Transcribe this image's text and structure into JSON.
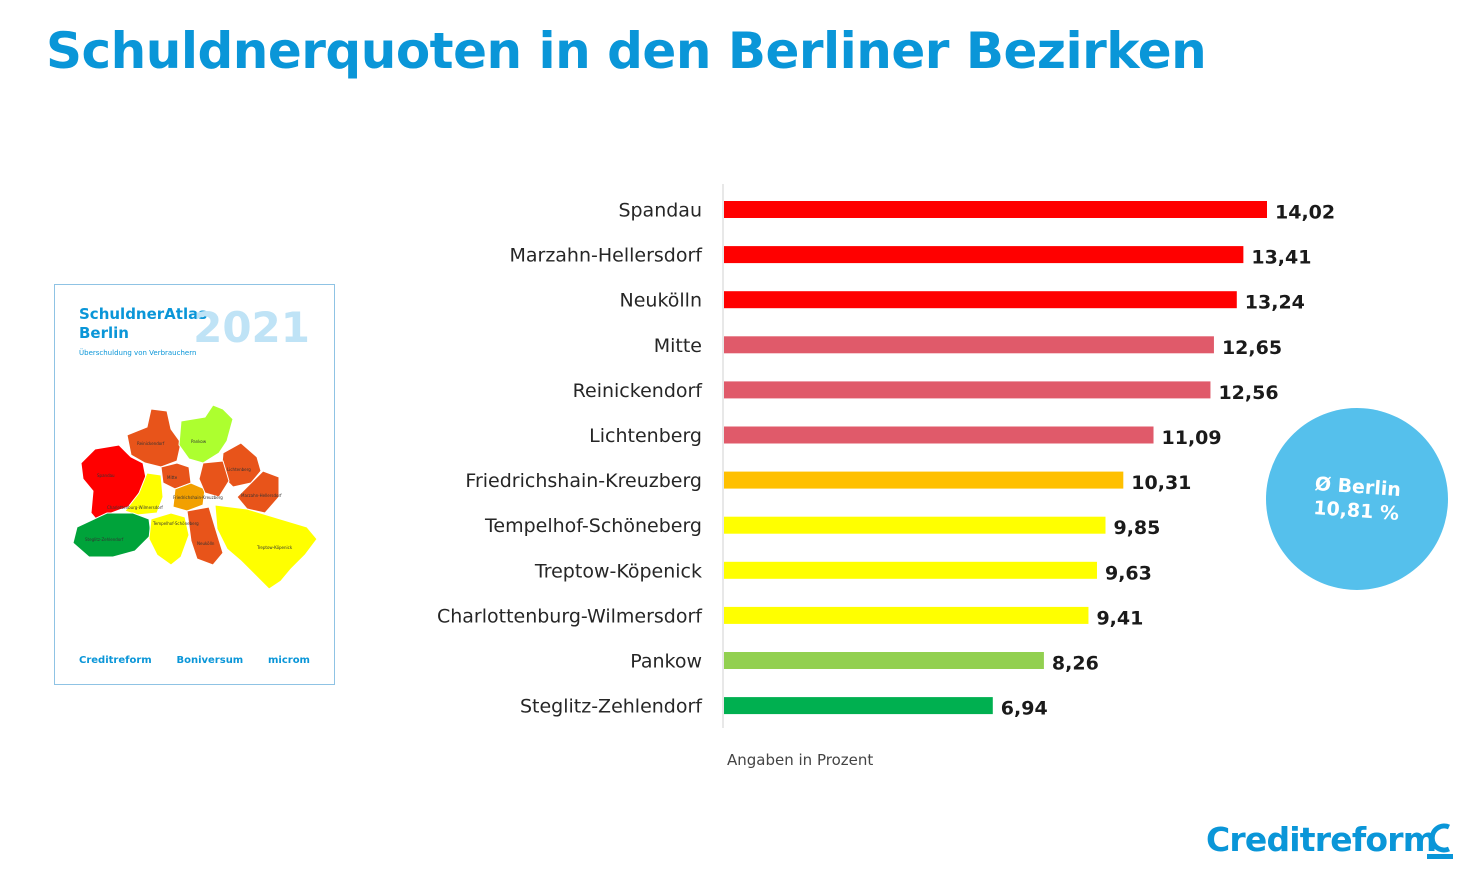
{
  "colors": {
    "brand": "#0a96d8",
    "circle": "#55c0ec",
    "red": "#ff0000",
    "rose": "#e05a6a",
    "orange": "#ffc000",
    "yellow": "#ffff00",
    "lightgreen": "#92d050",
    "green": "#00b050"
  },
  "header": {
    "title": "Schuldnerquoten in den Berliner Bezirken"
  },
  "cover": {
    "title_line1": "SchuldnerAtlas",
    "title_line2": "Berlin",
    "subtitle": "Überschuldung von Verbrauchern",
    "year": "2021",
    "logos": [
      "Creditreform",
      "Boniversum",
      "microm"
    ]
  },
  "chart_data": {
    "type": "bar",
    "orientation": "horizontal",
    "title": "Schuldnerquoten in den Berliner Bezirken",
    "categories": [
      "Spandau",
      "Marzahn-Hellersdorf",
      "Neukölln",
      "Mitte",
      "Reinickendorf",
      "Lichtenberg",
      "Friedrichshain-Kreuzberg",
      "Tempelhof-Schöneberg",
      "Treptow-Köpenick",
      "Charlottenburg-Wilmersdorf",
      "Pankow",
      "Steglitz-Zehlendorf"
    ],
    "values": [
      14.02,
      13.41,
      13.24,
      12.65,
      12.56,
      11.09,
      10.31,
      9.85,
      9.63,
      9.41,
      8.26,
      6.94
    ],
    "value_labels": [
      "14,02",
      "13,41",
      "13,24",
      "12,65",
      "12,56",
      "11,09",
      "10,31",
      "9,85",
      "9,63",
      "9,41",
      "8,26",
      "6,94"
    ],
    "bar_colors": [
      "#ff0000",
      "#ff0000",
      "#ff0000",
      "#e05a6a",
      "#e05a6a",
      "#e05a6a",
      "#ffc000",
      "#ffff00",
      "#ffff00",
      "#ffff00",
      "#92d050",
      "#00b050"
    ],
    "xlim": [
      0,
      14.02
    ],
    "grid": false,
    "note": "Angaben in Prozent"
  },
  "average": {
    "line1": "Ø Berlin",
    "line2": "10,81 %"
  },
  "footer": {
    "logo": "Creditreform"
  }
}
